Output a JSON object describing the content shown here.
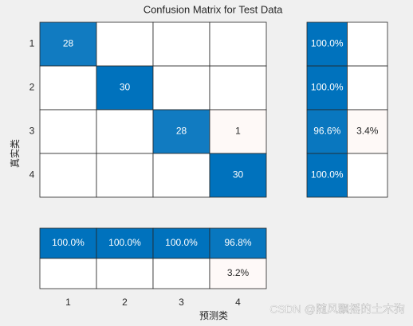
{
  "chart_data": {
    "type": "confusion-matrix",
    "title": "Confusion Matrix for Test Data",
    "ylabel": "真实类",
    "xlabel": "预测类",
    "categories": [
      "1",
      "2",
      "3",
      "4"
    ],
    "values": [
      [
        28,
        null,
        null,
        null
      ],
      [
        null,
        30,
        null,
        null
      ],
      [
        null,
        null,
        28,
        1
      ],
      [
        null,
        null,
        null,
        30
      ]
    ],
    "colors": {
      "correct": "#0072bd",
      "incorrect": "#d95319"
    },
    "row_summary": {
      "correct": {
        "values": [
          100,
          100,
          96.6,
          100
        ],
        "value_labels": [
          "100.0%",
          "100.0%",
          "96.6%",
          "100.0%"
        ]
      },
      "incorrect": {
        "values": [
          null,
          null,
          3.4,
          null
        ],
        "value_labels": [
          null,
          null,
          "3.4%",
          null
        ]
      }
    },
    "column_summary": {
      "correct": {
        "values": [
          100,
          100,
          100,
          96.8
        ],
        "value_labels": [
          "100.0%",
          "100.0%",
          "100.0%",
          "96.8%"
        ]
      },
      "incorrect": {
        "values": [
          null,
          null,
          null,
          3.2
        ],
        "value_labels": [
          null,
          null,
          null,
          "3.2%"
        ]
      }
    },
    "watermark": "CSDN @随风飘摇的土木狗"
  }
}
